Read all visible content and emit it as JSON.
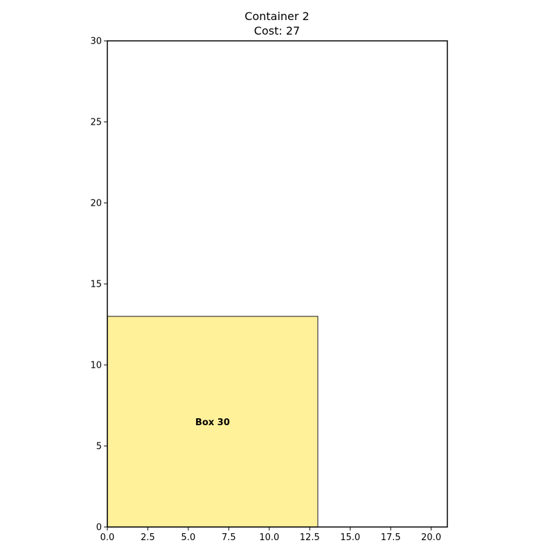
{
  "chart_data": {
    "type": "box-packing",
    "title": "Container 2",
    "subtitle": "Cost: 27",
    "xlim": [
      0,
      21
    ],
    "ylim": [
      0,
      30
    ],
    "xticks": [
      "0.0",
      "2.5",
      "5.0",
      "7.5",
      "10.0",
      "12.5",
      "15.0",
      "17.5",
      "20.0"
    ],
    "yticks": [
      "0",
      "5",
      "10",
      "15",
      "20",
      "25",
      "30"
    ],
    "grid": false,
    "boxes": [
      {
        "label": "Box 30",
        "x": 0,
        "y": 0,
        "width": 13,
        "height": 13,
        "color": "#fff09a"
      }
    ]
  }
}
